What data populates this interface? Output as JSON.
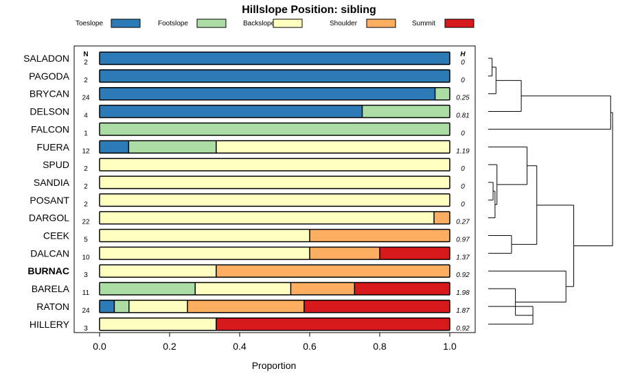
{
  "chart_data": {
    "type": "bar",
    "orientation": "horizontal",
    "stacked": true,
    "title": "Hillslope Position: sibling",
    "xlabel": "Proportion",
    "ylabel": "",
    "xlim": [
      0,
      1
    ],
    "xticks": [
      0.0,
      0.2,
      0.4,
      0.6,
      0.8,
      1.0
    ],
    "xtick_labels": [
      "0.0",
      "0.2",
      "0.4",
      "0.6",
      "0.8",
      "1.0"
    ],
    "n_header": "N",
    "h_header": "H",
    "legend": [
      {
        "name": "Toeslope",
        "color": "#2c7bb6"
      },
      {
        "name": "Footslope",
        "color": "#abdda4"
      },
      {
        "name": "Backslope",
        "color": "#ffffbf"
      },
      {
        "name": "Shoulder",
        "color": "#fdae61"
      },
      {
        "name": "Summit",
        "color": "#d7191c"
      }
    ],
    "categories": [
      "SALADON",
      "PAGODA",
      "BRYCAN",
      "DELSON",
      "FALCON",
      "FUERA",
      "SPUD",
      "SANDIA",
      "POSANT",
      "DARGOL",
      "CEEK",
      "DALCAN",
      "BURNAC",
      "BARELA",
      "RATON",
      "HILLERY"
    ],
    "bold_categories": [
      "BURNAC"
    ],
    "rows": [
      {
        "name": "SALADON",
        "n": "2",
        "h": "0",
        "values": [
          1.0,
          0,
          0,
          0,
          0
        ]
      },
      {
        "name": "PAGODA",
        "n": "2",
        "h": "0",
        "values": [
          1.0,
          0,
          0,
          0,
          0
        ]
      },
      {
        "name": "BRYCAN",
        "n": "24",
        "h": "0.25",
        "values": [
          0.958,
          0.042,
          0,
          0,
          0
        ]
      },
      {
        "name": "DELSON",
        "n": "4",
        "h": "0.81",
        "values": [
          0.75,
          0.25,
          0,
          0,
          0
        ]
      },
      {
        "name": "FALCON",
        "n": "1",
        "h": "0",
        "values": [
          0,
          1.0,
          0,
          0,
          0
        ]
      },
      {
        "name": "FUERA",
        "n": "12",
        "h": "1.19",
        "values": [
          0.083,
          0.25,
          0.667,
          0,
          0
        ]
      },
      {
        "name": "SPUD",
        "n": "2",
        "h": "0",
        "values": [
          0,
          0,
          1.0,
          0,
          0
        ]
      },
      {
        "name": "SANDIA",
        "n": "2",
        "h": "0",
        "values": [
          0,
          0,
          1.0,
          0,
          0
        ]
      },
      {
        "name": "POSANT",
        "n": "2",
        "h": "0",
        "values": [
          0,
          0,
          1.0,
          0,
          0
        ]
      },
      {
        "name": "DARGOL",
        "n": "22",
        "h": "0.27",
        "values": [
          0,
          0,
          0.955,
          0.045,
          0
        ]
      },
      {
        "name": "CEEK",
        "n": "5",
        "h": "0.97",
        "values": [
          0,
          0,
          0.6,
          0.4,
          0
        ]
      },
      {
        "name": "DALCAN",
        "n": "10",
        "h": "1.37",
        "values": [
          0,
          0,
          0.6,
          0.2,
          0.2
        ]
      },
      {
        "name": "BURNAC",
        "n": "3",
        "h": "0.92",
        "values": [
          0,
          0,
          0.333,
          0.667,
          0
        ]
      },
      {
        "name": "BARELA",
        "n": "11",
        "h": "1.98",
        "values": [
          0,
          0.273,
          0.273,
          0.182,
          0.272
        ]
      },
      {
        "name": "RATON",
        "n": "24",
        "h": "1.87",
        "values": [
          0.042,
          0.042,
          0.167,
          0.333,
          0.416
        ]
      },
      {
        "name": "HILLERY",
        "n": "3",
        "h": "0.92",
        "values": [
          0,
          0,
          0.333,
          0,
          0.667
        ]
      }
    ],
    "dendrogram": {
      "leaf_order": [
        "SALADON",
        "PAGODA",
        "BRYCAN",
        "DELSON",
        "FALCON",
        "FUERA",
        "SPUD",
        "SANDIA",
        "POSANT",
        "DARGOL",
        "CEEK",
        "DALCAN",
        "BURNAC",
        "BARELA",
        "RATON",
        "HILLERY"
      ],
      "merges": [
        {
          "a": "SALADON",
          "b": "PAGODA",
          "height": 0.02
        },
        {
          "a": "m1",
          "b": "BRYCAN",
          "height": 0.04
        },
        {
          "a": "m2",
          "b": "DELSON",
          "height": 0.17
        },
        {
          "a": "SANDIA",
          "b": "POSANT",
          "height": 0.025
        },
        {
          "a": "m4",
          "b": "DARGOL",
          "height": 0.035
        },
        {
          "a": "SPUD",
          "b": "m5",
          "height": 0.045
        },
        {
          "a": "m6",
          "b": "FUERA",
          "height": 0.2
        },
        {
          "a": "CEEK",
          "b": "DALCAN",
          "height": 0.12
        },
        {
          "a": "m7",
          "b": "m8",
          "height": 0.25
        },
        {
          "a": "RATON",
          "b": "HILLERY",
          "height": 0.23
        },
        {
          "a": "BARELA",
          "b": "m10",
          "height": 0.14
        },
        {
          "a": "BURNAC",
          "b": "m11",
          "height": 0.4
        },
        {
          "a": "m9",
          "b": "m12",
          "height": 0.44
        },
        {
          "a": "m3",
          "b": "FALCON",
          "height": 0.63
        },
        {
          "a": "m14",
          "b": "m13",
          "height": 0.64
        }
      ]
    }
  }
}
